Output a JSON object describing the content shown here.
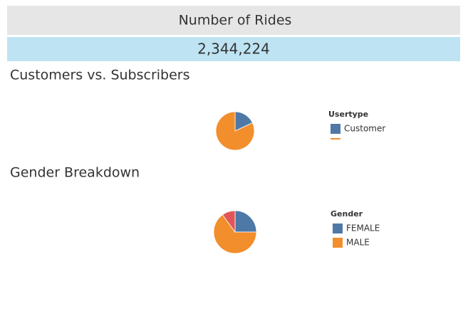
{
  "kpi": {
    "title": "Number of Rides",
    "value": "2,344,224"
  },
  "chart_data": [
    {
      "type": "pie",
      "title": "Customers vs. Subscribers",
      "legend_title": "Usertype",
      "categories": [
        "Customer",
        null
      ],
      "values": [
        18,
        82
      ],
      "colors": [
        "#4e79a7",
        "#f28e2b"
      ]
    },
    {
      "type": "pie",
      "title": "Gender Breakdown",
      "legend_title": "Gender",
      "categories": [
        "FEMALE",
        "MALE",
        null
      ],
      "values": [
        25,
        65,
        10
      ],
      "colors": [
        "#4e79a7",
        "#f28e2b",
        "#e15759"
      ]
    }
  ]
}
